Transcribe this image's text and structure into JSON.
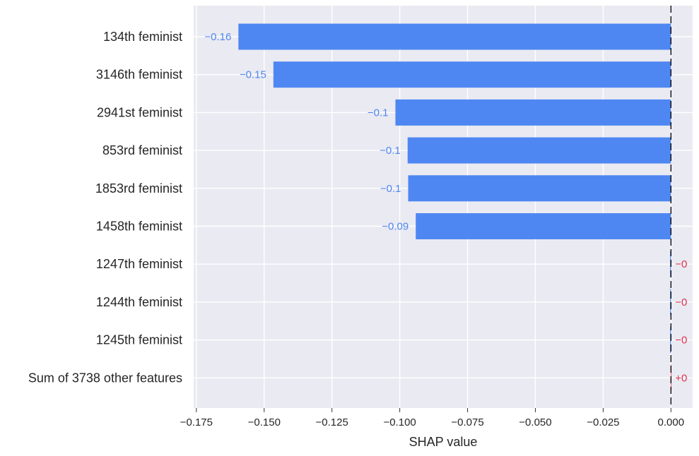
{
  "chart_data": {
    "type": "bar",
    "orientation": "horizontal",
    "categories": [
      "134th feminist",
      "3146th feminist",
      "2941st feminist",
      "853rd feminist",
      "1853rd feminist",
      "1458th feminist",
      "1247th feminist",
      "1244th feminist",
      "1245th feminist",
      "Sum of 3738 other features"
    ],
    "values": [
      -0.1595,
      -0.1466,
      -0.1016,
      -0.0971,
      -0.0969,
      -0.0941,
      -0.0003,
      -0.0003,
      -0.0003,
      0.0002
    ],
    "value_labels": [
      "−0.16",
      "−0.15",
      "−0.1",
      "−0.1",
      "−0.1",
      "−0.09",
      "−0",
      "−0",
      "−0",
      "+0"
    ],
    "xlabel": "SHAP value",
    "xlim": [
      -0.176,
      0.008
    ],
    "xticks": [
      -0.175,
      -0.15,
      -0.125,
      -0.1,
      -0.075,
      -0.05,
      -0.025,
      0.0
    ],
    "xtick_labels": [
      "−0.175",
      "−0.150",
      "−0.125",
      "−0.100",
      "−0.075",
      "−0.050",
      "−0.025",
      "0.000"
    ],
    "grid": true,
    "colors": {
      "negative": "#4F87F2",
      "negative_label": "#4F87F2",
      "positive_label": "#E0324F",
      "background": "#EAEAF2",
      "grid": "#ffffff",
      "zero_line": "#000000"
    }
  }
}
